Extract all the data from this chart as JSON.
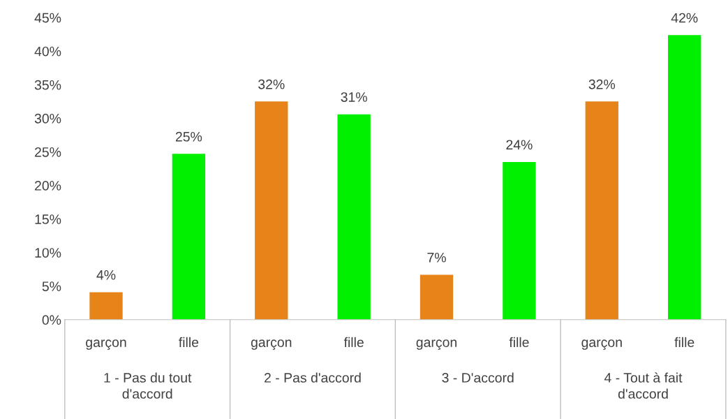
{
  "chart_data": {
    "type": "bar",
    "categories": [
      "garçon",
      "fille",
      "garçon",
      "fille",
      "garçon",
      "fille",
      "garçon",
      "fille"
    ],
    "values": [
      4.1,
      24.7,
      32.5,
      30.6,
      6.7,
      23.5,
      32.5,
      42.4
    ],
    "value_labels": [
      "4%",
      "25%",
      "32%",
      "31%",
      "7%",
      "24%",
      "32%",
      "42%"
    ],
    "colors": [
      "#e6841a",
      "#00f000",
      "#e6841a",
      "#00f000",
      "#e6841a",
      "#00f000",
      "#e6841a",
      "#00f000"
    ],
    "ylim": [
      0,
      45
    ],
    "yticks": [
      {
        "value": 0,
        "label": "0%"
      },
      {
        "value": 5,
        "label": "5%"
      },
      {
        "value": 10,
        "label": "10%"
      },
      {
        "value": 15,
        "label": "15%"
      },
      {
        "value": 20,
        "label": "20%"
      },
      {
        "value": 25,
        "label": "25%"
      },
      {
        "value": 30,
        "label": "30%"
      },
      {
        "value": 35,
        "label": "35%"
      },
      {
        "value": 40,
        "label": "40%"
      },
      {
        "value": 45,
        "label": "45%"
      }
    ],
    "annotations": [
      "1 - Pas du tout\nd'accord",
      "2 - Pas d'accord",
      "3 - D'accord",
      "4 - Tout à fait\nd'accord"
    ],
    "grid": false,
    "legend": false
  }
}
